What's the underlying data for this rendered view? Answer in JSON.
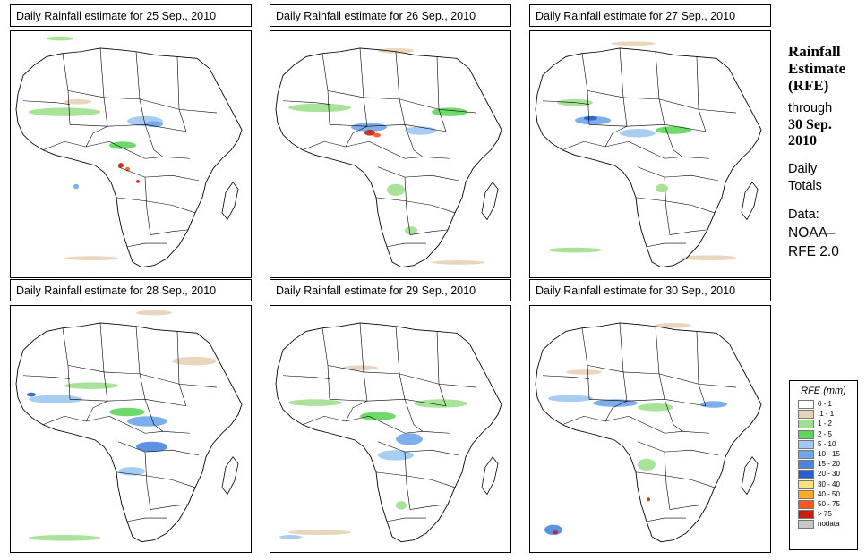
{
  "panels": [
    {
      "title": "Daily Rainfall estimate for  25 Sep., 2010",
      "pattern": "p25"
    },
    {
      "title": "Daily Rainfall estimate for  26 Sep., 2010",
      "pattern": "p26"
    },
    {
      "title": "Daily Rainfall estimate for  27 Sep., 2010",
      "pattern": "p27"
    },
    {
      "title": "Daily Rainfall estimate for  28 Sep., 2010",
      "pattern": "p28"
    },
    {
      "title": "Daily Rainfall estimate for  29 Sep., 2010",
      "pattern": "p29"
    },
    {
      "title": "Daily Rainfall estimate for  30 Sep., 2010",
      "pattern": "p30"
    }
  ],
  "side": {
    "heading1": "Rainfall",
    "heading2": "Estimate",
    "heading3": "(RFE)",
    "through": "through",
    "date1": "30 Sep.",
    "date2": "2010",
    "daily1": "Daily",
    "daily2": "Totals",
    "data1": "Data:",
    "data2": "NOAA–",
    "data3": "RFE 2.0"
  },
  "legend": {
    "title": "RFE (mm)",
    "items": [
      {
        "label": "0 - 1",
        "color": "#ffffff"
      },
      {
        "label": ".1 - 1",
        "color": "#e8d2b6"
      },
      {
        "label": "1 - 2",
        "color": "#9ee08e"
      },
      {
        "label": "2 - 5",
        "color": "#5fd65a"
      },
      {
        "label": "5 - 10",
        "color": "#9fc8f2"
      },
      {
        "label": "10 - 15",
        "color": "#6fa6ea"
      },
      {
        "label": "15 - 20",
        "color": "#4a86e0"
      },
      {
        "label": "20 - 30",
        "color": "#2a5fd0"
      },
      {
        "label": "30 - 40",
        "color": "#ffe27a"
      },
      {
        "label": "40 - 50",
        "color": "#ffaa22"
      },
      {
        "label": "50 - 75",
        "color": "#ff5520"
      },
      {
        "label": "> 75",
        "color": "#c81e10"
      },
      {
        "label": "nodata",
        "color": "#c8c8c8"
      }
    ]
  }
}
